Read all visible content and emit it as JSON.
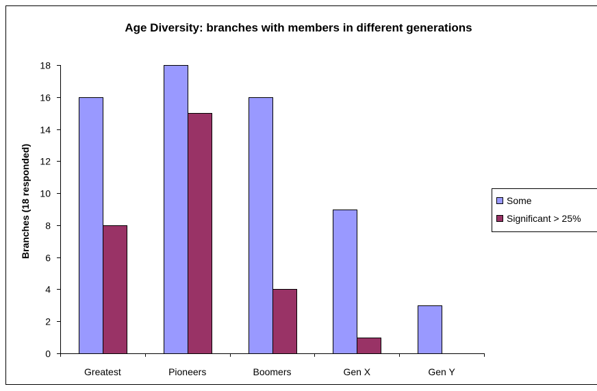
{
  "chart_data": {
    "type": "bar",
    "title": "Age Diversity: branches with members in different generations",
    "xlabel": "",
    "ylabel": "Branches (18 responded)",
    "categories": [
      "Greatest",
      "Pioneers",
      "Boomers",
      "Gen X",
      "Gen Y"
    ],
    "series": [
      {
        "name": "Some",
        "values": [
          16,
          18,
          16,
          9,
          3
        ],
        "color": "#9999ff"
      },
      {
        "name": "Significant > 25%",
        "values": [
          8,
          15,
          4,
          1,
          0
        ],
        "color": "#993366"
      }
    ],
    "ylim": [
      0,
      18
    ],
    "yticks": [
      0,
      2,
      4,
      6,
      8,
      10,
      12,
      14,
      16,
      18
    ],
    "grid": false,
    "legend_position": "right"
  }
}
